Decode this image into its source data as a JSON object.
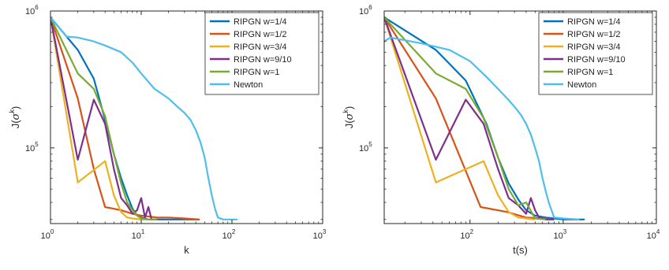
{
  "chart_data": [
    {
      "type": "line",
      "xscale": "log",
      "yscale": "log",
      "xlabel": "k",
      "ylabel": "J(σ^k)",
      "xlim": [
        1,
        1000
      ],
      "ylim": [
        28000,
        1000000
      ],
      "xticks": [
        {
          "value": 1,
          "base": "10",
          "exp": "0"
        },
        {
          "value": 10,
          "base": "10",
          "exp": "1"
        },
        {
          "value": 100,
          "base": "10",
          "exp": "2"
        },
        {
          "value": 1000,
          "base": "10",
          "exp": "3"
        }
      ],
      "yticks": [
        {
          "value": 100000,
          "base": "10",
          "exp": "5"
        },
        {
          "value": 1000000,
          "base": "10",
          "exp": "6"
        }
      ],
      "legend_position": "top-right",
      "series": [
        {
          "name": "RIPGN w=1/4",
          "color": "#0072bd",
          "x": [
            1,
            2,
            3,
            4,
            5,
            6,
            7,
            8,
            9,
            10,
            12,
            15,
            20,
            30,
            44
          ],
          "y": [
            900000,
            520000,
            320000,
            160000,
            90000,
            60000,
            45000,
            36000,
            32000,
            31000,
            30000,
            30000,
            30000,
            30000,
            30000
          ]
        },
        {
          "name": "RIPGN w=1/2",
          "color": "#d95319",
          "x": [
            1,
            2,
            3,
            4,
            6,
            8,
            10,
            15,
            20,
            30,
            44
          ],
          "y": [
            900000,
            230000,
            70000,
            37000,
            35000,
            33000,
            32000,
            31000,
            31000,
            30500,
            30000
          ]
        },
        {
          "name": "RIPGN w=3/4",
          "color": "#edb120",
          "x": [
            1,
            2,
            4,
            5,
            6,
            7,
            8,
            10,
            12,
            15
          ],
          "y": [
            900000,
            56000,
            80000,
            45000,
            34000,
            31000,
            30500,
            30000,
            30000,
            30000
          ]
        },
        {
          "name": "RIPGN w=9/10",
          "color": "#7e2f8e",
          "x": [
            1,
            2,
            3,
            4,
            5,
            6,
            7,
            8,
            9,
            10,
            11,
            12,
            13,
            14,
            15
          ],
          "y": [
            900000,
            82000,
            225000,
            150000,
            70000,
            43000,
            38000,
            33000,
            35000,
            43000,
            31000,
            37000,
            30000,
            30000,
            30000
          ]
        },
        {
          "name": "RIPGN w=1",
          "color": "#77ac30",
          "x": [
            1,
            2,
            3,
            4,
            5,
            6,
            7,
            8,
            9,
            10,
            12,
            15
          ],
          "y": [
            900000,
            350000,
            270000,
            170000,
            90000,
            55000,
            40000,
            35000,
            32000,
            30500,
            30000,
            30000
          ]
        },
        {
          "name": "Newton",
          "color": "#4dbeee",
          "x": [
            1,
            1.5,
            2,
            3,
            4,
            6,
            8,
            10,
            14,
            20,
            25,
            30,
            35,
            40,
            45,
            50,
            55,
            60,
            65,
            70,
            80,
            100,
            115
          ],
          "y": [
            900000,
            650000,
            640000,
            600000,
            560000,
            500000,
            420000,
            350000,
            270000,
            230000,
            200000,
            180000,
            160000,
            135000,
            110000,
            85000,
            60000,
            45000,
            36000,
            31000,
            30000,
            30000,
            30000
          ]
        }
      ]
    },
    {
      "type": "line",
      "xscale": "log",
      "yscale": "log",
      "xlabel": "t(s)",
      "ylabel": "J(σ^k)",
      "xlim": [
        12,
        10000
      ],
      "ylim": [
        28000,
        1000000
      ],
      "xticks": [
        {
          "value": 100,
          "base": "10",
          "exp": "2"
        },
        {
          "value": 1000,
          "base": "10",
          "exp": "3"
        },
        {
          "value": 10000,
          "base": "10",
          "exp": "4"
        }
      ],
      "yticks": [
        {
          "value": 100000,
          "base": "10",
          "exp": "5"
        },
        {
          "value": 1000000,
          "base": "10",
          "exp": "6"
        }
      ],
      "legend_position": "top-right",
      "series": [
        {
          "name": "RIPGN w=1/4",
          "color": "#0072bd",
          "x": [
            12,
            43,
            90,
            150,
            200,
            260,
            330,
            400,
            500,
            650,
            800,
            1000,
            1300,
            1700
          ],
          "y": [
            900000,
            520000,
            310000,
            150000,
            85000,
            55000,
            42000,
            35000,
            32000,
            31000,
            30500,
            30000,
            30000,
            30000
          ]
        },
        {
          "name": "RIPGN w=1/2",
          "color": "#d95319",
          "x": [
            12,
            43,
            130,
            250,
            400,
            600,
            800
          ],
          "y": [
            900000,
            230000,
            37000,
            34000,
            31000,
            30500,
            30000
          ]
        },
        {
          "name": "RIPGN w=3/4",
          "color": "#edb120",
          "x": [
            12,
            43,
            140,
            200,
            260,
            330,
            400,
            500
          ],
          "y": [
            900000,
            56000,
            80000,
            45000,
            34000,
            31000,
            30500,
            30000
          ]
        },
        {
          "name": "RIPGN w=9/10",
          "color": "#7e2f8e",
          "x": [
            12,
            43,
            90,
            140,
            200,
            260,
            330,
            400,
            450,
            500,
            550,
            650,
            800
          ],
          "y": [
            900000,
            82000,
            225000,
            150000,
            70000,
            43000,
            38000,
            33000,
            43000,
            35000,
            31000,
            30000,
            30000
          ]
        },
        {
          "name": "RIPGN w=1",
          "color": "#77ac30",
          "x": [
            12,
            43,
            90,
            140,
            200,
            260,
            330,
            400,
            500,
            650
          ],
          "y": [
            900000,
            350000,
            270000,
            165000,
            85000,
            50000,
            38000,
            40000,
            30500,
            30000
          ]
        },
        {
          "name": "Newton",
          "color": "#4dbeee",
          "x": [
            12,
            14,
            30,
            60,
            100,
            150,
            200,
            250,
            300,
            350,
            400,
            450,
            500,
            550,
            600,
            650,
            700,
            750,
            800,
            1000,
            1500
          ],
          "y": [
            600000,
            640000,
            580000,
            520000,
            430000,
            330000,
            270000,
            230000,
            200000,
            175000,
            150000,
            125000,
            100000,
            80000,
            60000,
            48000,
            40000,
            35000,
            31000,
            30500,
            30000
          ]
        }
      ]
    }
  ]
}
